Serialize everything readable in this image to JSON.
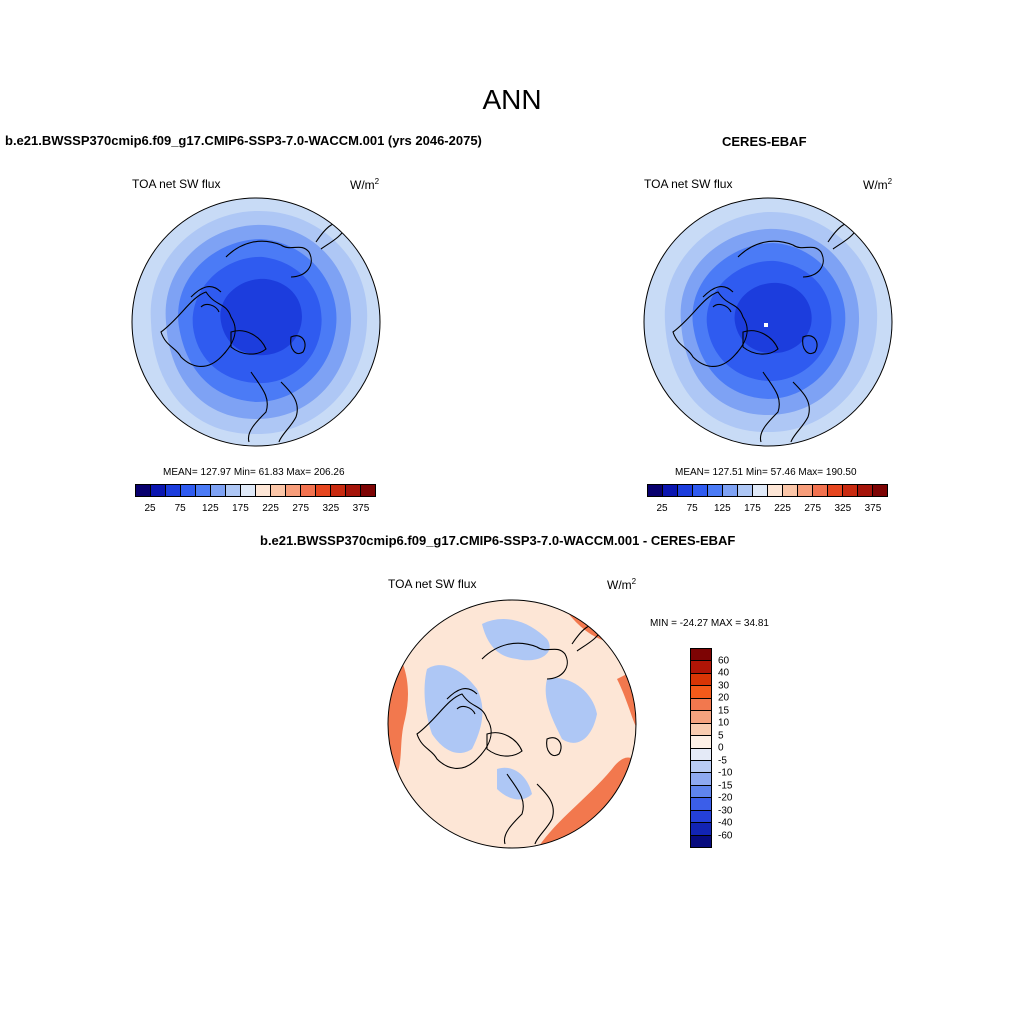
{
  "main_title": "ANN",
  "panels": [
    {
      "title": "b.e21.BWSSP370cmip6.f09_g17.CMIP6-SSP3-7.0-WACCM.001 (yrs 2046-2075)",
      "variable": "TOA net SW flux",
      "units_base": "W/m",
      "units_exp": "2",
      "stats": "MEAN= 127.97  Min=  61.83  Max= 206.26"
    },
    {
      "title": "CERES-EBAF",
      "variable": "TOA net SW flux",
      "units_base": "W/m",
      "units_exp": "2",
      "stats": "MEAN= 127.51  Min=  57.46  Max= 190.50"
    },
    {
      "title": "b.e21.BWSSP370cmip6.f09_g17.CMIP6-SSP3-7.0-WACCM.001 - CERES-EBAF",
      "variable": "TOA net SW flux",
      "units_base": "W/m",
      "units_exp": "2",
      "stats": "MIN = -24.27 MAX =  34.81"
    }
  ],
  "colorbar_top": {
    "colors": [
      "#08006e",
      "#0b16b0",
      "#1c3ddd",
      "#2f5bf0",
      "#4b7bf6",
      "#7ea2f4",
      "#aec7f5",
      "#dfe9f8",
      "#fde6d6",
      "#fbc6a8",
      "#f79d7a",
      "#f2724f",
      "#e6461f",
      "#c82a10",
      "#a5140a",
      "#7d0404"
    ],
    "labels": [
      "25",
      "75",
      "125",
      "175",
      "225",
      "275",
      "325",
      "375"
    ]
  },
  "colorbar_diff": {
    "colors": [
      "#7d0404",
      "#b01506",
      "#d83505",
      "#f45a1a",
      "#f2784e",
      "#f5a27e",
      "#f9ccb0",
      "#fdf0e6",
      "#e4eaf7",
      "#b8cbf4",
      "#8ea9f1",
      "#5f84ed",
      "#3b5ee9",
      "#2440d8",
      "#1224b4",
      "#070b7e"
    ],
    "labels": [
      "60",
      "40",
      "30",
      "20",
      "15",
      "10",
      "5",
      "0",
      "-5",
      "-10",
      "-15",
      "-20",
      "-30",
      "-40",
      "-60"
    ]
  },
  "map_colors": {
    "abs_outer": "#c8dbf6",
    "abs_ring1": "#aec7f5",
    "abs_ring2": "#7ea2f4",
    "abs_ring3": "#4b7bf6",
    "abs_ring4": "#2f5bf0",
    "abs_core": "#1c3ddd",
    "diff_base": "#fde6d6",
    "diff_warm": "#f2784e",
    "diff_cool": "#aec7f5"
  }
}
